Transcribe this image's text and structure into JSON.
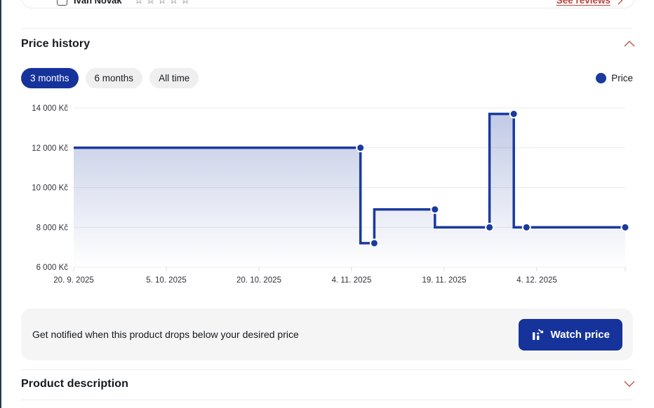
{
  "page": {
    "colors": {
      "accent_blue": "#16339B",
      "line_blue": "#1A3A9E",
      "chevron_red": "#C0544C",
      "banner_bg": "#F5F5F6",
      "grid_gray": "#EBEBEE"
    }
  },
  "review_bar": {
    "reviewer_name": "Ivan Novák",
    "rating_stars_display": "☆☆☆☆☆",
    "see_reviews_label": "See reviews"
  },
  "price_history": {
    "title": "Price history",
    "tabs": [
      {
        "label": "3 months",
        "active": true
      },
      {
        "label": "6 months",
        "active": false
      },
      {
        "label": "All time",
        "active": false
      }
    ],
    "legend": {
      "label": "Price"
    }
  },
  "chart_data": {
    "type": "line",
    "style": "step",
    "title": "Price history (3 months)",
    "unit": "Kč",
    "ylim": [
      6000,
      14000
    ],
    "y_tick_values": [
      14000,
      12000,
      10000,
      8000,
      6000
    ],
    "y_ticks": [
      "14 000 Kč",
      "12 000 Kč",
      "10 000 Kč",
      "8 000 Kč",
      "6 000 Kč"
    ],
    "x_ticks": [
      "20. 9. 2025",
      "5. 10. 2025",
      "20. 10. 2025",
      "4. 11. 2025",
      "19. 11. 2025",
      "4. 12. 2025"
    ],
    "grid": "horizontal",
    "legend_position": "top-right",
    "series": [
      {
        "name": "Price",
        "color": "#1A3A9E",
        "points": [
          {
            "x": 0.0,
            "price": 12000,
            "dot": false,
            "date": "20. 9. 2025"
          },
          {
            "x": 0.52,
            "price": 12000,
            "dot": true,
            "date": "5. 11. 2025"
          },
          {
            "x": 0.545,
            "price": 7200,
            "dot": true,
            "date": "8. 11. 2025"
          },
          {
            "x": 0.655,
            "price": 8900,
            "dot": true,
            "date": "18. 11. 2025"
          },
          {
            "x": 0.754,
            "price": 8000,
            "dot": true,
            "date": "27. 11. 2025"
          },
          {
            "x": 0.798,
            "price": 13700,
            "dot": true,
            "date": "1. 12. 2025"
          },
          {
            "x": 0.821,
            "price": 8000,
            "dot": true,
            "date": "3. 12. 2025"
          },
          {
            "x": 1.0,
            "price": 8000,
            "dot": true,
            "date": "19. 12. 2025"
          }
        ]
      }
    ]
  },
  "watch_banner": {
    "message": "Get notified when this product drops below your desired price",
    "button_label": "Watch price"
  },
  "product_description": {
    "title": "Product description"
  }
}
